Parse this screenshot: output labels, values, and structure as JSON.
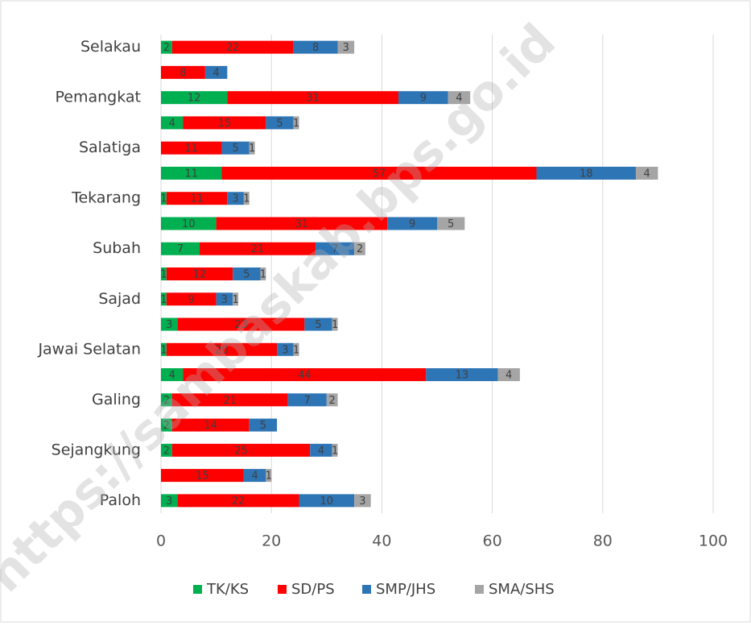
{
  "chart_data": {
    "type": "bar",
    "orientation": "horizontal",
    "stacked": true,
    "watermark": "https://sambaskab.bps.go.id",
    "categories": [
      "Selakau",
      null,
      "Pemangkat",
      null,
      "Salatiga",
      null,
      "Tekarang",
      null,
      "Subah",
      null,
      "Sajad",
      null,
      "Jawai Selatan",
      null,
      "Galing",
      null,
      "Sejangkung",
      null,
      "Paloh"
    ],
    "series": [
      {
        "name": "TK/KS",
        "color": "#00b050",
        "values": [
          2,
          null,
          12,
          4,
          null,
          11,
          1,
          10,
          7,
          1,
          1,
          3,
          1,
          4,
          2,
          2,
          2,
          null,
          3
        ]
      },
      {
        "name": "SD/PS",
        "color": "#ff0000",
        "values": [
          22,
          8,
          31,
          15,
          11,
          57,
          11,
          31,
          21,
          12,
          9,
          23,
          20,
          44,
          21,
          14,
          25,
          15,
          22
        ]
      },
      {
        "name": "SMP/JHS",
        "color": "#2e75b6",
        "values": [
          8,
          4,
          9,
          5,
          5,
          18,
          3,
          9,
          7,
          5,
          3,
          5,
          3,
          13,
          7,
          5,
          4,
          4,
          10
        ]
      },
      {
        "name": "SMA/SHS",
        "color": "#a5a5a5",
        "values": [
          3,
          null,
          4,
          1,
          1,
          4,
          1,
          5,
          2,
          1,
          1,
          1,
          1,
          4,
          2,
          null,
          1,
          1,
          3
        ]
      }
    ],
    "xlim": [
      0,
      100
    ],
    "xticks": [
      0,
      20,
      40,
      60,
      80,
      100
    ],
    "grid": true,
    "legend": "bottom"
  }
}
